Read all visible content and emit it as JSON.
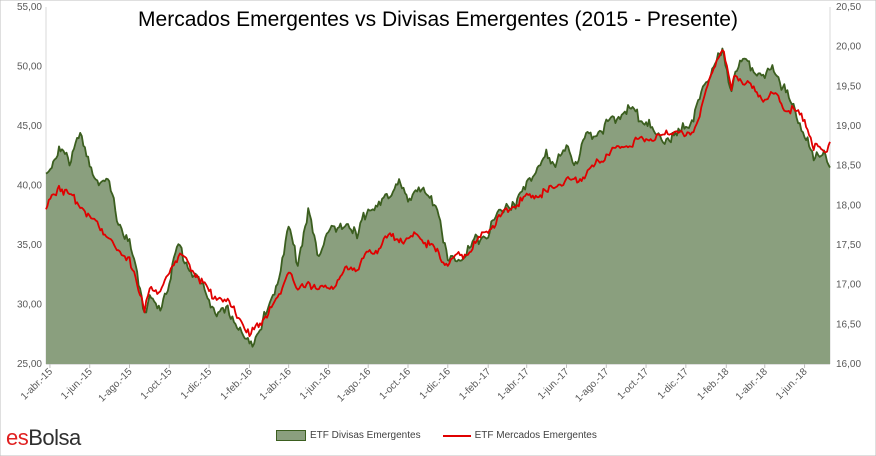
{
  "chart_data": {
    "type": "area",
    "title": "Mercados Emergentes vs Divisas Emergentes (2015 - Presente)",
    "x_tick_labels": [
      "1-abr.-15",
      "1-jun.-15",
      "1-ago.-15",
      "1-oct.-15",
      "1-dic.-15",
      "1-feb.-16",
      "1-abr.-16",
      "1-jun.-16",
      "1-ago.-16",
      "1-oct.-16",
      "1-dic.-16",
      "1-feb.-17",
      "1-abr.-17",
      "1-jun.-17",
      "1-ago.-17",
      "1-oct.-17",
      "1-dic.-17",
      "1-feb.-18",
      "1-abr.-18",
      "1-jun.-18"
    ],
    "left_axis": {
      "ticks": [
        "25,00",
        "30,00",
        "35,00",
        "40,00",
        "45,00",
        "50,00",
        "55,00"
      ],
      "ylim": [
        25,
        55
      ]
    },
    "right_axis": {
      "ticks": [
        "16,00",
        "16,50",
        "17,00",
        "17,50",
        "18,00",
        "18,50",
        "19,00",
        "19,50",
        "20,00",
        "20,50"
      ],
      "ylim": [
        16.0,
        20.5
      ]
    },
    "legend_position": "bottom",
    "series": [
      {
        "name": "ETF Divisas Emergentes",
        "axis": "left",
        "style": "area",
        "fill_color": "#8a9f7e",
        "line_color": "#3b5e1f",
        "x": [
          "2015-03-26",
          "2015-04-15",
          "2015-05-01",
          "2015-05-15",
          "2015-06-01",
          "2015-06-15",
          "2015-07-01",
          "2015-07-15",
          "2015-08-01",
          "2015-08-15",
          "2015-08-24",
          "2015-09-01",
          "2015-09-15",
          "2015-10-01",
          "2015-10-15",
          "2015-11-01",
          "2015-11-15",
          "2015-12-01",
          "2015-12-15",
          "2016-01-01",
          "2016-01-20",
          "2016-02-01",
          "2016-02-15",
          "2016-03-01",
          "2016-03-15",
          "2016-04-01",
          "2016-04-15",
          "2016-05-01",
          "2016-05-15",
          "2016-06-01",
          "2016-06-15",
          "2016-07-01",
          "2016-07-15",
          "2016-08-01",
          "2016-08-15",
          "2016-09-01",
          "2016-09-15",
          "2016-10-01",
          "2016-10-15",
          "2016-11-01",
          "2016-11-15",
          "2016-12-01",
          "2016-12-15",
          "2017-01-01",
          "2017-01-15",
          "2017-02-01",
          "2017-02-15",
          "2017-03-01",
          "2017-03-15",
          "2017-04-01",
          "2017-04-15",
          "2017-05-01",
          "2017-05-15",
          "2017-06-01",
          "2017-06-15",
          "2017-07-01",
          "2017-07-15",
          "2017-08-01",
          "2017-08-15",
          "2017-09-01",
          "2017-09-15",
          "2017-10-01",
          "2017-10-15",
          "2017-11-01",
          "2017-11-15",
          "2017-12-01",
          "2017-12-15",
          "2018-01-01",
          "2018-01-15",
          "2018-01-26",
          "2018-02-09",
          "2018-02-15",
          "2018-03-01",
          "2018-03-15",
          "2018-04-01",
          "2018-04-15",
          "2018-05-01",
          "2018-05-15",
          "2018-06-01",
          "2018-06-15",
          "2018-07-01",
          "2018-07-10"
        ],
        "values": [
          41.0,
          43.0,
          42.0,
          44.5,
          41.5,
          40.5,
          40.0,
          37.0,
          35.0,
          32.0,
          29.5,
          30.5,
          29.5,
          32.0,
          35.0,
          33.0,
          32.0,
          30.5,
          29.0,
          29.5,
          27.5,
          26.5,
          28.0,
          29.5,
          32.0,
          36.5,
          33.5,
          38.0,
          34.0,
          36.5,
          36.0,
          37.0,
          35.5,
          38.5,
          38.0,
          39.0,
          40.5,
          38.5,
          40.0,
          39.0,
          38.5,
          33.5,
          34.0,
          34.5,
          35.5,
          36.0,
          37.5,
          38.5,
          38.0,
          40.5,
          41.0,
          42.5,
          42.0,
          43.0,
          42.0,
          44.0,
          44.5,
          45.0,
          45.5,
          46.5,
          46.0,
          45.5,
          44.0,
          44.0,
          44.0,
          45.0,
          46.0,
          48.5,
          50.5,
          51.0,
          48.0,
          50.0,
          50.5,
          50.0,
          49.0,
          50.0,
          48.0,
          46.5,
          44.5,
          42.0,
          43.0,
          41.5
        ]
      },
      {
        "name": "ETF Mercados Emergentes",
        "axis": "right",
        "style": "line",
        "line_color": "#e00000",
        "x": [
          "2015-03-26",
          "2015-04-15",
          "2015-05-01",
          "2015-05-15",
          "2015-06-01",
          "2015-06-15",
          "2015-07-01",
          "2015-07-15",
          "2015-08-01",
          "2015-08-15",
          "2015-08-24",
          "2015-09-01",
          "2015-09-15",
          "2015-10-01",
          "2015-10-15",
          "2015-11-01",
          "2015-11-15",
          "2015-12-01",
          "2015-12-15",
          "2016-01-01",
          "2016-01-20",
          "2016-02-01",
          "2016-02-15",
          "2016-03-01",
          "2016-03-15",
          "2016-04-01",
          "2016-04-15",
          "2016-05-01",
          "2016-05-15",
          "2016-06-01",
          "2016-06-15",
          "2016-07-01",
          "2016-07-15",
          "2016-08-01",
          "2016-08-15",
          "2016-09-01",
          "2016-09-15",
          "2016-10-01",
          "2016-10-15",
          "2016-11-01",
          "2016-11-15",
          "2016-12-01",
          "2016-12-15",
          "2017-01-01",
          "2017-01-15",
          "2017-02-01",
          "2017-02-15",
          "2017-03-01",
          "2017-03-15",
          "2017-04-01",
          "2017-04-15",
          "2017-05-01",
          "2017-05-15",
          "2017-06-01",
          "2017-06-15",
          "2017-07-01",
          "2017-07-15",
          "2017-08-01",
          "2017-08-15",
          "2017-09-01",
          "2017-09-15",
          "2017-10-01",
          "2017-10-15",
          "2017-11-01",
          "2017-11-15",
          "2017-12-01",
          "2017-12-15",
          "2018-01-01",
          "2018-01-15",
          "2018-01-26",
          "2018-02-09",
          "2018-02-15",
          "2018-03-01",
          "2018-03-15",
          "2018-04-01",
          "2018-04-15",
          "2018-05-01",
          "2018-05-15",
          "2018-06-01",
          "2018-06-15",
          "2018-07-01",
          "2018-07-10"
        ],
        "values": [
          17.95,
          18.25,
          18.1,
          18.05,
          17.85,
          17.75,
          17.6,
          17.4,
          17.35,
          16.9,
          16.7,
          17.0,
          16.85,
          17.2,
          17.35,
          17.25,
          17.1,
          16.9,
          16.85,
          16.75,
          16.55,
          16.35,
          16.5,
          16.65,
          16.8,
          17.2,
          16.9,
          17.05,
          16.9,
          17.0,
          17.0,
          17.25,
          17.2,
          17.4,
          17.45,
          17.6,
          17.6,
          17.55,
          17.65,
          17.5,
          17.4,
          17.25,
          17.35,
          17.4,
          17.55,
          17.7,
          17.8,
          17.95,
          18.0,
          18.1,
          18.15,
          18.15,
          18.25,
          18.3,
          18.3,
          18.4,
          18.5,
          18.65,
          18.7,
          18.75,
          18.8,
          18.85,
          18.85,
          18.9,
          18.95,
          18.85,
          19.0,
          19.4,
          19.8,
          20.0,
          19.45,
          19.65,
          19.55,
          19.45,
          19.35,
          19.4,
          19.25,
          19.2,
          19.1,
          18.75,
          18.65,
          18.8
        ]
      }
    ]
  },
  "legend": {
    "item1": "ETF Divisas Emergentes",
    "item2": "ETF Mercados Emergentes"
  },
  "logo": {
    "text_es": "es",
    "text_bolsa": "Bolsa"
  }
}
